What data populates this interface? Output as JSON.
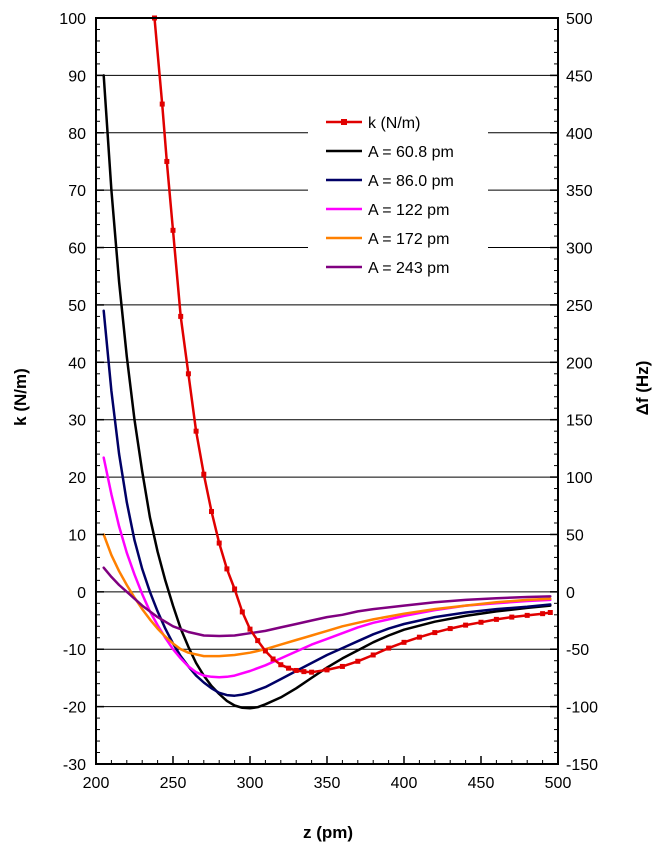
{
  "chart_data": {
    "type": "line",
    "title": "",
    "xlabel": "z (pm)",
    "ylabel": "k (N/m)",
    "y2label": "Δf (Hz)",
    "xlim": [
      200,
      500
    ],
    "ylim": [
      -30,
      100
    ],
    "y2lim": [
      -150,
      500
    ],
    "xticks": [
      200,
      250,
      300,
      350,
      400,
      450,
      500
    ],
    "yticks": [
      -30,
      -20,
      -10,
      0,
      10,
      20,
      30,
      40,
      50,
      60,
      70,
      80,
      90,
      100
    ],
    "y2ticks": [
      -150,
      -100,
      -50,
      0,
      50,
      100,
      150,
      200,
      250,
      300,
      350,
      400,
      450,
      500
    ],
    "grid": "horizontal",
    "legend_position": "top-center",
    "series": [
      {
        "name": "k (N/m)",
        "axis": "left",
        "color": "#e00000",
        "marker": "square",
        "x": [
          238,
          243,
          246,
          250,
          255,
          260,
          265,
          270,
          275,
          280,
          285,
          290,
          295,
          300,
          305,
          310,
          315,
          320,
          325,
          330,
          335,
          340,
          350,
          360,
          370,
          380,
          390,
          400,
          410,
          420,
          430,
          440,
          450,
          460,
          470,
          480,
          490,
          495
        ],
        "y": [
          100,
          85,
          75,
          63,
          48,
          38,
          28,
          20.5,
          14,
          8.5,
          4,
          0.5,
          -3.5,
          -6.5,
          -8.5,
          -10.3,
          -11.7,
          -12.7,
          -13.3,
          -13.7,
          -13.9,
          -14.0,
          -13.6,
          -13.0,
          -12.1,
          -11.0,
          -9.8,
          -8.8,
          -7.9,
          -7.1,
          -6.4,
          -5.8,
          -5.3,
          -4.8,
          -4.4,
          -4.1,
          -3.8,
          -3.6
        ]
      },
      {
        "name": "A = 60.8 pm",
        "axis": "right",
        "color": "#000000",
        "marker": "none",
        "x": [
          205,
          210,
          215,
          220,
          225,
          230,
          235,
          240,
          245,
          250,
          255,
          260,
          265,
          270,
          275,
          280,
          285,
          290,
          295,
          300,
          305,
          310,
          320,
          330,
          340,
          350,
          360,
          370,
          380,
          390,
          400,
          420,
          440,
          460,
          480,
          495
        ],
        "y": [
          450,
          350,
          270,
          205,
          150,
          105,
          65,
          35,
          10,
          -12,
          -32,
          -48,
          -62,
          -73,
          -82,
          -89,
          -95,
          -99,
          -101,
          -101.5,
          -100.5,
          -98,
          -92,
          -84,
          -75,
          -66,
          -58,
          -51,
          -44,
          -38,
          -33,
          -26,
          -21,
          -17,
          -14,
          -12
        ]
      },
      {
        "name": "A = 86.0 pm",
        "axis": "right",
        "color": "#000066",
        "marker": "none",
        "x": [
          205,
          210,
          215,
          220,
          225,
          230,
          235,
          240,
          245,
          250,
          255,
          260,
          265,
          270,
          275,
          280,
          285,
          290,
          295,
          300,
          310,
          320,
          330,
          340,
          350,
          360,
          370,
          380,
          390,
          400,
          420,
          440,
          460,
          480,
          495
        ],
        "y": [
          245,
          175,
          120,
          78,
          45,
          20,
          0,
          -17,
          -32,
          -45,
          -56,
          -65,
          -73,
          -79,
          -84,
          -88,
          -90,
          -90.5,
          -89.5,
          -88,
          -83,
          -76,
          -69,
          -62,
          -55,
          -49,
          -43,
          -37,
          -32,
          -28,
          -22,
          -18,
          -15,
          -13,
          -11
        ]
      },
      {
        "name": "A = 122 pm",
        "axis": "right",
        "color": "#ff00ff",
        "marker": "none",
        "x": [
          205,
          210,
          215,
          220,
          225,
          230,
          235,
          240,
          245,
          250,
          255,
          260,
          265,
          270,
          275,
          280,
          285,
          290,
          300,
          310,
          320,
          330,
          340,
          350,
          360,
          370,
          380,
          390,
          400,
          420,
          440,
          460,
          480,
          495
        ],
        "y": [
          117,
          85,
          57,
          34,
          15,
          -2,
          -17,
          -29,
          -40,
          -50,
          -58,
          -65,
          -70,
          -73,
          -74,
          -74.5,
          -74,
          -73,
          -69,
          -64,
          -58,
          -52,
          -46,
          -41,
          -36,
          -31,
          -27,
          -24,
          -21,
          -16,
          -12,
          -10,
          -8,
          -7
        ]
      },
      {
        "name": "A = 172 pm",
        "axis": "right",
        "color": "#ff8000",
        "marker": "none",
        "x": [
          205,
          210,
          215,
          220,
          225,
          230,
          235,
          240,
          245,
          250,
          255,
          260,
          270,
          280,
          290,
          300,
          310,
          320,
          330,
          340,
          350,
          360,
          370,
          380,
          400,
          420,
          440,
          460,
          480,
          495
        ],
        "y": [
          50,
          32,
          18,
          6,
          -5,
          -15,
          -24,
          -32,
          -39,
          -45,
          -50,
          -53,
          -56,
          -56,
          -55,
          -53,
          -50,
          -46,
          -42,
          -38,
          -34,
          -30,
          -27,
          -24,
          -19,
          -15,
          -12,
          -9,
          -7,
          -6
        ]
      },
      {
        "name": "A = 243 pm",
        "axis": "right",
        "color": "#800080",
        "marker": "none",
        "x": [
          205,
          210,
          215,
          220,
          225,
          230,
          235,
          240,
          250,
          260,
          270,
          280,
          290,
          300,
          310,
          320,
          330,
          340,
          350,
          360,
          370,
          380,
          400,
          420,
          440,
          460,
          480,
          495
        ],
        "y": [
          21,
          13,
          6,
          0,
          -6,
          -12,
          -17,
          -22,
          -30,
          -35,
          -38,
          -38.5,
          -38,
          -36,
          -34,
          -31,
          -28,
          -25,
          -22,
          -20,
          -17,
          -15,
          -12,
          -9,
          -7,
          -5.5,
          -4.5,
          -4
        ]
      }
    ]
  }
}
